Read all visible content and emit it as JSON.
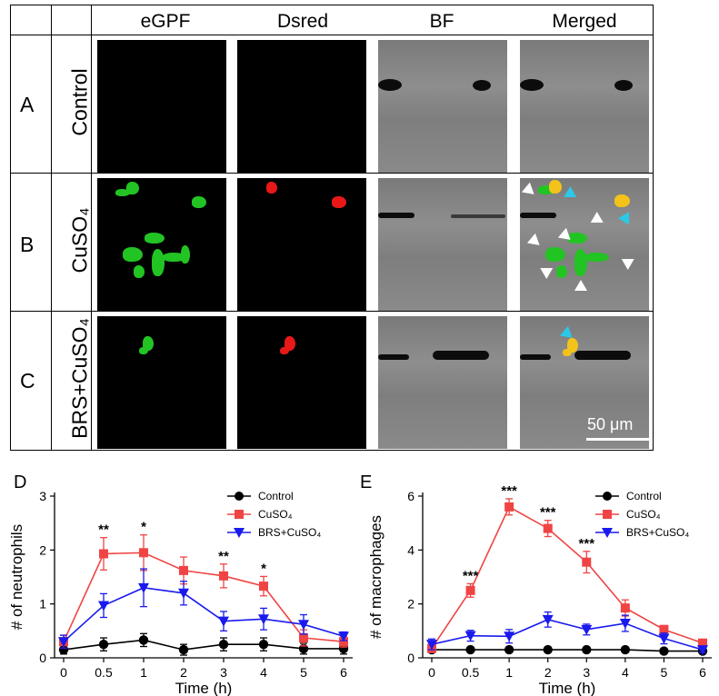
{
  "figure": {
    "columns": [
      "eGPF",
      "Dsred",
      "BF",
      "Merged"
    ],
    "rows": [
      {
        "letter": "A",
        "condition": "Control"
      },
      {
        "letter": "B",
        "condition": "CuSO₄"
      },
      {
        "letter": "C",
        "condition": "BRS+CuSO₄"
      }
    ],
    "scale_bar": "50 μm"
  },
  "chart_data": [
    {
      "panel": "D",
      "type": "line",
      "xlabel": "Time (h)",
      "ylabel": "# of neutrophils",
      "categories": [
        "0",
        "0.5",
        "1",
        "2",
        "3",
        "4",
        "5",
        "6"
      ],
      "ylim": [
        0,
        3
      ],
      "yticks": [
        0,
        1,
        2,
        3
      ],
      "legend_position": "top-right",
      "series": [
        {
          "name": "Control",
          "color": "#000000",
          "marker": "circle",
          "values": [
            0.15,
            0.25,
            0.33,
            0.15,
            0.25,
            0.25,
            0.17,
            0.17
          ],
          "errors": [
            0.08,
            0.12,
            0.12,
            0.1,
            0.12,
            0.12,
            0.1,
            0.1
          ]
        },
        {
          "name": "CuSO₄",
          "color": "#f04444",
          "marker": "square",
          "values": [
            0.3,
            1.93,
            1.95,
            1.62,
            1.52,
            1.33,
            0.37,
            0.3
          ],
          "errors": [
            0.12,
            0.3,
            0.33,
            0.25,
            0.22,
            0.18,
            0.15,
            0.1
          ]
        },
        {
          "name": "BRS+CuSO₄",
          "color": "#1a1aee",
          "marker": "triangle-down",
          "values": [
            0.3,
            0.97,
            1.3,
            1.2,
            0.68,
            0.72,
            0.62,
            0.4
          ],
          "errors": [
            0.12,
            0.22,
            0.35,
            0.22,
            0.18,
            0.2,
            0.18,
            0.08
          ]
        }
      ],
      "annotations": [
        {
          "x": "0.5",
          "text": "**"
        },
        {
          "x": "1",
          "text": "*"
        },
        {
          "x": "3",
          "text": "**"
        },
        {
          "x": "4",
          "text": "*"
        }
      ]
    },
    {
      "panel": "E",
      "type": "line",
      "xlabel": "Time (h)",
      "ylabel": "# of macrophages",
      "categories": [
        "0",
        "0.5",
        "1",
        "2",
        "3",
        "4",
        "5",
        "6"
      ],
      "ylim": [
        0,
        6
      ],
      "yticks": [
        0,
        2,
        4,
        6
      ],
      "legend_position": "top-right",
      "series": [
        {
          "name": "Control",
          "color": "#000000",
          "marker": "circle",
          "values": [
            0.3,
            0.3,
            0.3,
            0.3,
            0.3,
            0.3,
            0.25,
            0.25
          ],
          "errors": [
            0.08,
            0.08,
            0.08,
            0.08,
            0.08,
            0.08,
            0.08,
            0.08
          ]
        },
        {
          "name": "CuSO₄",
          "color": "#f04444",
          "marker": "square",
          "values": [
            0.35,
            2.5,
            5.6,
            4.8,
            3.55,
            1.85,
            1.05,
            0.55
          ],
          "errors": [
            0.15,
            0.25,
            0.3,
            0.3,
            0.4,
            0.3,
            0.15,
            0.1
          ]
        },
        {
          "name": "BRS+CuSO₄",
          "color": "#1a1aee",
          "marker": "triangle-down",
          "values": [
            0.5,
            0.82,
            0.8,
            1.42,
            1.05,
            1.28,
            0.72,
            0.3
          ],
          "errors": [
            0.2,
            0.2,
            0.25,
            0.28,
            0.2,
            0.3,
            0.2,
            0.1
          ]
        }
      ],
      "annotations": [
        {
          "x": "0.5",
          "text": "***"
        },
        {
          "x": "1",
          "text": "***"
        },
        {
          "x": "2",
          "text": "***"
        },
        {
          "x": "3",
          "text": "***"
        }
      ]
    }
  ]
}
